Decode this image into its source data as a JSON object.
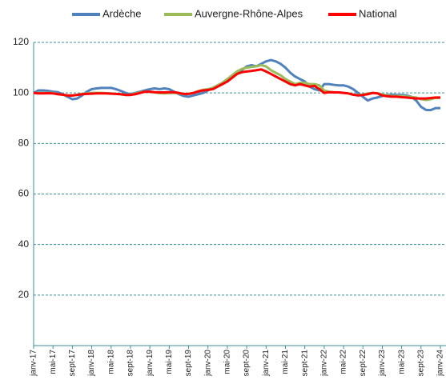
{
  "chart_data": {
    "type": "line",
    "categories": [
      "janv-17",
      null,
      null,
      null,
      "mai-17",
      null,
      null,
      null,
      "sept-17",
      null,
      null,
      null,
      "janv-18",
      null,
      null,
      null,
      "mai-18",
      null,
      null,
      null,
      "sept-18",
      null,
      null,
      null,
      "janv-19",
      null,
      null,
      null,
      "mai-19",
      null,
      null,
      null,
      "sept-19",
      null,
      null,
      null,
      "janv-20",
      null,
      null,
      null,
      "mai-20",
      null,
      null,
      null,
      "sept-20",
      null,
      null,
      null,
      "janv-21",
      null,
      null,
      null,
      "mai-21",
      null,
      null,
      null,
      "sept-21",
      null,
      null,
      null,
      "janv-22",
      null,
      null,
      null,
      "mai-22",
      null,
      null,
      null,
      "sept-22",
      null,
      null,
      null,
      "janv-23",
      null,
      null,
      null,
      "mai-23",
      null,
      null,
      null,
      "sept-23",
      null,
      null,
      null,
      "janv-24"
    ],
    "series": [
      {
        "name": "Ardèche",
        "color": "#4f81bd",
        "values": [
          100,
          101,
          101,
          100.8,
          100.5,
          100.3,
          99.5,
          98.5,
          97.5,
          97.8,
          99,
          100.5,
          101.5,
          101.8,
          102,
          102,
          102,
          101.5,
          100.8,
          100,
          99.5,
          100,
          100.5,
          101,
          101.5,
          101.8,
          101.5,
          101.8,
          101.5,
          100.5,
          99.5,
          98.8,
          98.5,
          99,
          99.5,
          100,
          101,
          102,
          103,
          104,
          105.5,
          106.5,
          107.5,
          109,
          110.5,
          111,
          110.5,
          111.5,
          112.5,
          113,
          112.5,
          111.5,
          110,
          108,
          106.5,
          105.5,
          104.5,
          102.5,
          101.5,
          101,
          103.5,
          103.5,
          103.2,
          103,
          103,
          102.5,
          101.5,
          100,
          98.5,
          97,
          97.8,
          98.2,
          98.8,
          99.2,
          99.3,
          99.2,
          99.2,
          99,
          98.5,
          97,
          94.5,
          93.3,
          93.2,
          94,
          94
        ]
      },
      {
        "name": "Auvergne-Rhône-Alpes",
        "color": "#9bbb59",
        "values": [
          100,
          100,
          100,
          100,
          100,
          99.5,
          99.3,
          99,
          99,
          99.3,
          99.6,
          99.8,
          100,
          100,
          100,
          99.9,
          99.8,
          99.6,
          99.4,
          99.2,
          99.3,
          99.7,
          100.2,
          100.5,
          100.4,
          100.2,
          99.9,
          99.8,
          99.9,
          100,
          99.8,
          99.5,
          99.7,
          100,
          100.7,
          101.2,
          101.5,
          102,
          103,
          104,
          105.5,
          107,
          108.5,
          109.5,
          110,
          110.3,
          110.5,
          111,
          110.5,
          109,
          108,
          107,
          105.5,
          104.5,
          103.5,
          104,
          104,
          103.5,
          103.5,
          103,
          101,
          100.5,
          100.3,
          100.2,
          100,
          99.8,
          99.3,
          99.2,
          99.3,
          99.8,
          100,
          99.9,
          99.4,
          99,
          98.8,
          98.8,
          98.8,
          98.6,
          98.4,
          98.2,
          97.5,
          97.2,
          97.5,
          98,
          98
        ]
      },
      {
        "name": "National",
        "color": "#ff0000",
        "values": [
          100,
          99.8,
          99.8,
          99.9,
          99.8,
          99.5,
          99.3,
          99,
          99,
          99.2,
          99.5,
          99.6,
          99.7,
          99.8,
          99.8,
          99.8,
          99.7,
          99.6,
          99.5,
          99.2,
          99.2,
          99.5,
          100,
          100.5,
          100.5,
          100.3,
          100.2,
          100.2,
          100.3,
          100.3,
          100,
          99.6,
          99.6,
          100,
          100.6,
          101,
          101.2,
          101.5,
          102.5,
          103.5,
          104.5,
          106,
          107.5,
          108.2,
          108.5,
          108.7,
          109,
          109.3,
          108.5,
          107.5,
          106.5,
          105.5,
          104.5,
          103.5,
          103,
          103.5,
          103,
          102.5,
          102.8,
          101.5,
          100,
          100.3,
          100.2,
          100.2,
          100,
          99.8,
          99.3,
          99,
          99.2,
          99.5,
          100,
          99.8,
          99,
          98.7,
          98.5,
          98.5,
          98.3,
          98.2,
          98,
          97.8,
          97.8,
          97.8,
          98,
          98.2,
          98.2
        ]
      }
    ],
    "ylim": [
      0,
      120
    ],
    "yticks": [
      20,
      40,
      60,
      80,
      100,
      120
    ],
    "grid": true,
    "legend": "top"
  }
}
